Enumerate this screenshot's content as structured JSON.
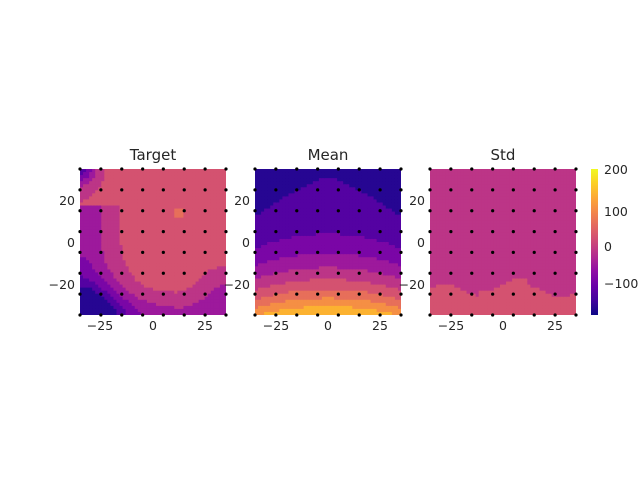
{
  "chart_data": [
    {
      "type": "heatmap",
      "title": "Target",
      "xlim": [
        -36,
        36
      ],
      "ylim": [
        -36,
        36
      ],
      "xticks": [
        "−25",
        "0",
        "25"
      ],
      "yticks": [
        "20",
        "0",
        "−20"
      ],
      "tick_values": [
        -25,
        0,
        25
      ],
      "ytick_values": [
        20,
        0,
        -20
      ],
      "grid_points": [
        -36,
        -25.7,
        -15.4,
        -5.1,
        5.1,
        15.4,
        25.7,
        36
      ],
      "field": "target"
    },
    {
      "type": "heatmap",
      "title": "Mean",
      "xlim": [
        -36,
        36
      ],
      "ylim": [
        -36,
        36
      ],
      "xticks": [
        "−25",
        "0",
        "25"
      ],
      "yticks": [
        "20",
        "0",
        "−20"
      ],
      "tick_values": [
        -25,
        0,
        25
      ],
      "ytick_values": [
        20,
        0,
        -20
      ],
      "grid_points": [
        -36,
        -25.7,
        -15.4,
        -5.1,
        5.1,
        15.4,
        25.7,
        36
      ],
      "field": "mean"
    },
    {
      "type": "heatmap",
      "title": "Std",
      "xlim": [
        -36,
        36
      ],
      "ylim": [
        -36,
        36
      ],
      "xticks": [
        "−25",
        "0",
        "25"
      ],
      "yticks": [
        "20",
        "0",
        "−20"
      ],
      "tick_values": [
        -25,
        0,
        25
      ],
      "ytick_values": [
        20,
        0,
        -20
      ],
      "grid_points": [
        -36,
        -25.7,
        -15.4,
        -5.1,
        5.1,
        15.4,
        25.7,
        36
      ],
      "field": "std"
    }
  ],
  "colorbar": {
    "colormap": "plasma",
    "range": [
      -190,
      220
    ],
    "ticks": [
      {
        "label": "200",
        "value": 200
      },
      {
        "label": "100",
        "value": 100
      },
      {
        "label": "0",
        "value": 0
      },
      {
        "label": "−100",
        "value": -100
      }
    ]
  },
  "colors": {
    "plasma": [
      "#0d0887",
      "#41049d",
      "#6a00a8",
      "#8f0da4",
      "#b12a90",
      "#cc4778",
      "#e16462",
      "#f2844b",
      "#fca636",
      "#fcce25",
      "#f0f921"
    ],
    "markers": "#000000"
  }
}
